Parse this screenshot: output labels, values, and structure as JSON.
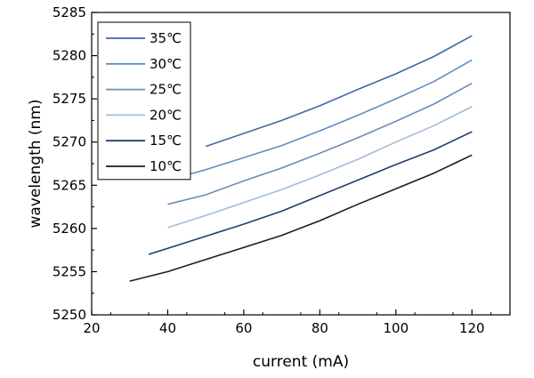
{
  "chart_data": {
    "type": "line",
    "title": "",
    "xlabel": "current (mA)",
    "ylabel": "wavelength (nm)",
    "xlim": [
      20,
      130
    ],
    "ylim": [
      5250,
      5285
    ],
    "xticks": [
      20,
      40,
      60,
      80,
      100,
      120
    ],
    "yticks": [
      5250,
      5255,
      5260,
      5265,
      5270,
      5275,
      5280,
      5285
    ],
    "grid": false,
    "legend": "top-left",
    "series": [
      {
        "name": "35℃",
        "color": "#3f6aa8",
        "x": [
          50,
          60,
          70,
          80,
          90,
          100,
          110,
          120
        ],
        "y": [
          5269.5,
          5271.0,
          5272.5,
          5274.2,
          5276.1,
          5277.9,
          5279.9,
          5282.3
        ]
      },
      {
        "name": "30℃",
        "color": "#5e8ec4",
        "x": [
          45,
          50,
          60,
          70,
          80,
          90,
          100,
          110,
          120
        ],
        "y": [
          5266.2,
          5266.8,
          5268.2,
          5269.6,
          5271.3,
          5273.1,
          5275.0,
          5277.0,
          5279.5
        ]
      },
      {
        "name": "25℃",
        "color": "#6d8bb3",
        "x": [
          40,
          50,
          60,
          70,
          80,
          90,
          100,
          110,
          120
        ],
        "y": [
          5262.8,
          5263.9,
          5265.5,
          5267.0,
          5268.7,
          5270.5,
          5272.4,
          5274.4,
          5276.8
        ]
      },
      {
        "name": "20℃",
        "color": "#a3bcd9",
        "x": [
          40,
          50,
          60,
          70,
          80,
          90,
          100,
          110,
          120
        ],
        "y": [
          5260.1,
          5261.5,
          5263.0,
          5264.5,
          5266.2,
          5268.0,
          5270.0,
          5271.9,
          5274.1
        ]
      },
      {
        "name": "15℃",
        "color": "#1e3e6e",
        "x": [
          35,
          40,
          50,
          60,
          70,
          80,
          90,
          100,
          110,
          120
        ],
        "y": [
          5257.0,
          5257.7,
          5259.1,
          5260.5,
          5262.0,
          5263.8,
          5265.6,
          5267.4,
          5269.1,
          5271.2
        ]
      },
      {
        "name": "10℃",
        "color": "#1a1c2e",
        "x": [
          30,
          40,
          50,
          60,
          70,
          80,
          90,
          100,
          110,
          120
        ],
        "y": [
          5253.9,
          5255.0,
          5256.4,
          5257.8,
          5259.2,
          5260.9,
          5262.8,
          5264.6,
          5266.4,
          5268.5
        ]
      }
    ]
  }
}
